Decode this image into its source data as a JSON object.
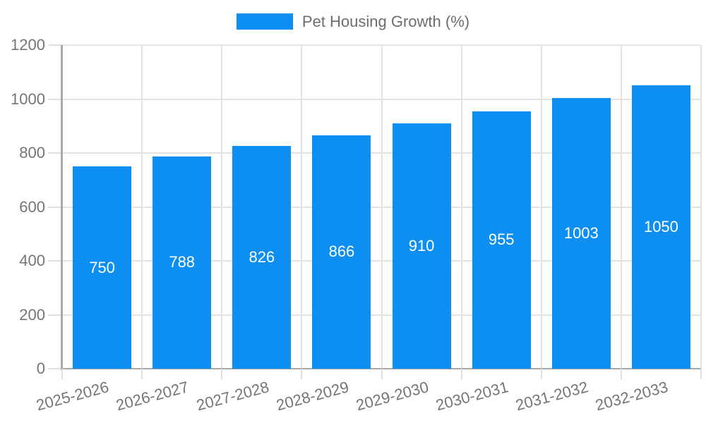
{
  "chart_data": {
    "type": "bar",
    "title": "",
    "legend": {
      "label": "Pet Housing Growth (%)",
      "position": "top-center"
    },
    "categories": [
      "2025-2026",
      "2026-2027",
      "2027-2028",
      "2028-2029",
      "2029-2030",
      "2030-2031",
      "2031-2032",
      "2032-2033"
    ],
    "values": [
      750,
      788,
      826,
      866,
      910,
      955,
      1003,
      1050
    ],
    "xlabel": "",
    "ylabel": "",
    "y_axis": {
      "min": 0,
      "max": 1200,
      "tick_step": 200,
      "ticks": [
        0,
        200,
        400,
        600,
        800,
        1000,
        1200
      ]
    },
    "grid": {
      "horizontal": true,
      "vertical": true
    },
    "value_labels": {
      "visible": true,
      "placement": "center-of-bar"
    },
    "x_label_rotation_deg": -15,
    "colors": {
      "bar": "#0d8ff2",
      "gridline": "#e3e3e3",
      "tick_mark": "#e0e0e0",
      "axis_line": "#a8a8a8",
      "axis_text": "#757575",
      "legend_text": "#6e6e6e",
      "value_label_text": "#ffffff",
      "background": "#ffffff"
    }
  }
}
